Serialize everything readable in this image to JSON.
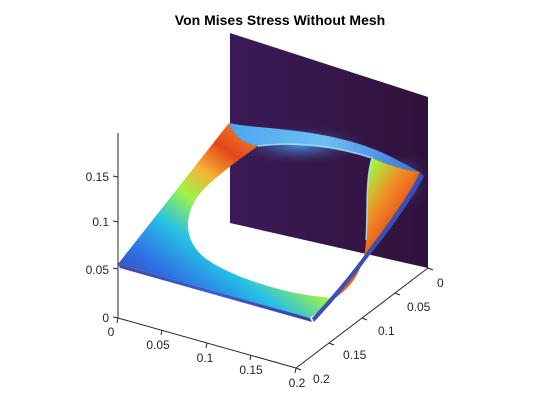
{
  "chart_data": {
    "type": "surface",
    "title": "Von Mises Stress Without Mesh",
    "xlabel": "",
    "ylabel": "",
    "zlabel": "",
    "x_ticks": [
      "0",
      "0.05",
      "0.1",
      "0.15",
      "0.2"
    ],
    "y_ticks": [
      "0",
      "0.05",
      "0.1",
      "0.15",
      "0.2"
    ],
    "z_ticks": [
      "0",
      "0.05",
      "0.1",
      "0.15"
    ],
    "xlim": [
      0,
      0.2
    ],
    "ylim": [
      0,
      0.2
    ],
    "zlim": [
      0,
      0.19
    ],
    "colormap": "turbo",
    "colors": {
      "low_stress": "#31123b",
      "high_stress": "#c8361a"
    },
    "grid": false
  }
}
